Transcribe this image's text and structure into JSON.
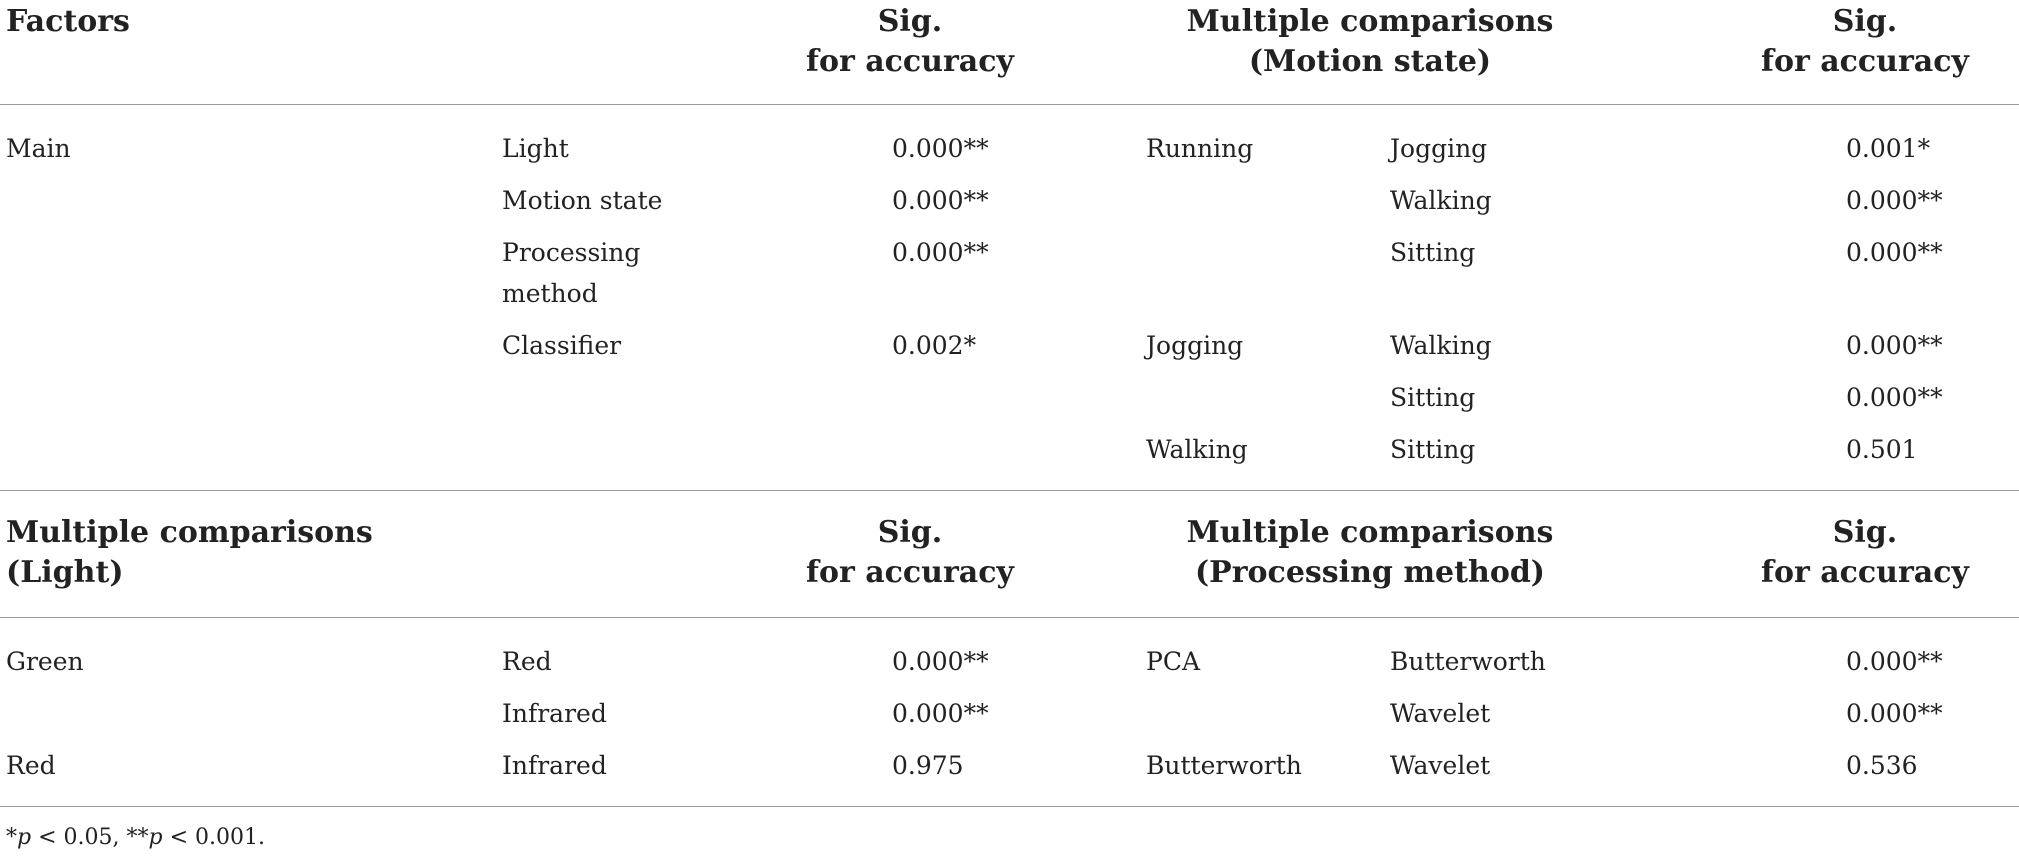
{
  "section1": {
    "headers": {
      "factors": "Factors",
      "sig_line1": "Sig.",
      "sig_line2": "for accuracy",
      "mc_line1": "Multiple comparisons",
      "mc_line2": "(Motion state)",
      "sig2_line1": "Sig.",
      "sig2_line2": "for accuracy"
    },
    "main_label": "Main",
    "factor_rows": [
      {
        "name": "Light",
        "sig": "0.000**"
      },
      {
        "name": "Motion state",
        "sig": "0.000**"
      },
      {
        "name_line1": "Processing",
        "name_line2": "method",
        "sig": "0.000**"
      },
      {
        "name": "Classifier",
        "sig": "0.002*"
      }
    ],
    "motion_rows": [
      {
        "a": "Running",
        "b": "Jogging",
        "sig": "0.001*"
      },
      {
        "a": "",
        "b": "Walking",
        "sig": "0.000**"
      },
      {
        "a": "",
        "b": "Sitting",
        "sig": "0.000**"
      },
      {
        "a": "Jogging",
        "b": "Walking",
        "sig": "0.000**"
      },
      {
        "a": "",
        "b": "Sitting",
        "sig": "0.000**"
      },
      {
        "a": "Walking",
        "b": "Sitting",
        "sig": "0.501"
      }
    ]
  },
  "section2": {
    "headers": {
      "mc_light_line1": "Multiple comparisons",
      "mc_light_line2": "(Light)",
      "sig_line1": "Sig.",
      "sig_line2": "for accuracy",
      "mc_proc_line1": "Multiple comparisons",
      "mc_proc_line2": "(Processing method)",
      "sig2_line1": "Sig.",
      "sig2_line2": "for accuracy"
    },
    "light_rows": [
      {
        "a": "Green",
        "b": "Red",
        "sig": "0.000**"
      },
      {
        "a": "",
        "b": "Infrared",
        "sig": "0.000**"
      },
      {
        "a": "Red",
        "b": "Infrared",
        "sig": "0.975"
      }
    ],
    "processing_rows": [
      {
        "a": "PCA",
        "b": "Butterworth",
        "sig": "0.000**"
      },
      {
        "a": "",
        "b": "Wavelet",
        "sig": "0.000**"
      },
      {
        "a": "Butterworth",
        "b": "Wavelet",
        "sig": "0.536"
      }
    ]
  },
  "footnote": {
    "star1": "*",
    "p1": "p",
    "rest1": " < 0.05, ",
    "star2": "**",
    "p2": "p",
    "rest2": " < 0.001."
  }
}
